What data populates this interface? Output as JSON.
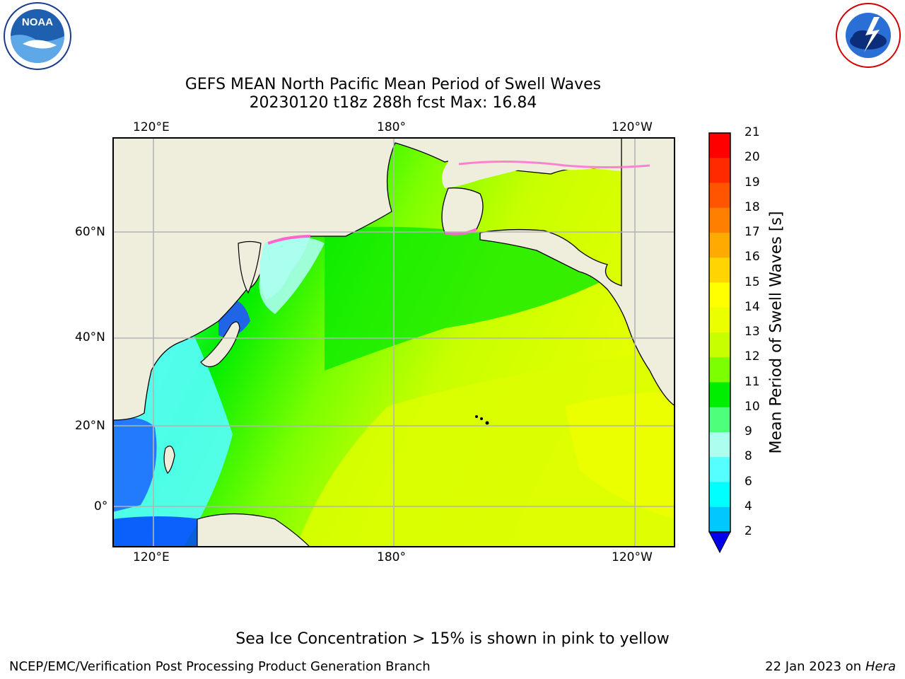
{
  "title_line1": "GEFS MEAN North Pacific Mean Period of Swell Waves",
  "title_line2": "20230120 t18z 288h fcst   Max: 16.84",
  "top_lon_labels": [
    "120°E",
    "180°",
    "120°W"
  ],
  "bottom_lon_labels": [
    "120°E",
    "180°",
    "120°W"
  ],
  "lat_labels": [
    "60°N",
    "40°N",
    "20°N",
    "0°"
  ],
  "colorbar": {
    "label": "Mean Period of Swell Waves [s]",
    "ticks": [
      "21",
      "20",
      "19",
      "18",
      "17",
      "16",
      "15",
      "14",
      "13",
      "12",
      "11",
      "10",
      "9",
      "8",
      "6",
      "4",
      "2"
    ],
    "colors": [
      "#ff0000",
      "#ff2a00",
      "#ff5500",
      "#ff7f00",
      "#ffaa00",
      "#ffd400",
      "#ffff00",
      "#ecff00",
      "#c8ff00",
      "#7cff00",
      "#00ee00",
      "#4dff7a",
      "#aaffee",
      "#55ffff",
      "#00ffff",
      "#00c8ff",
      "#0064ff"
    ],
    "extend_color": "#0000ee"
  },
  "logos": {
    "noaa": "NOAA",
    "nws": "NATIONAL WEATHER SERVICE"
  },
  "note": "Sea Ice Concentration > 15% is shown in pink to yellow",
  "footer_left": "NCEP/EMC/Verification Post Processing Product Generation Branch",
  "footer_date": "22 Jan 2023 on ",
  "footer_host": "Hera"
}
